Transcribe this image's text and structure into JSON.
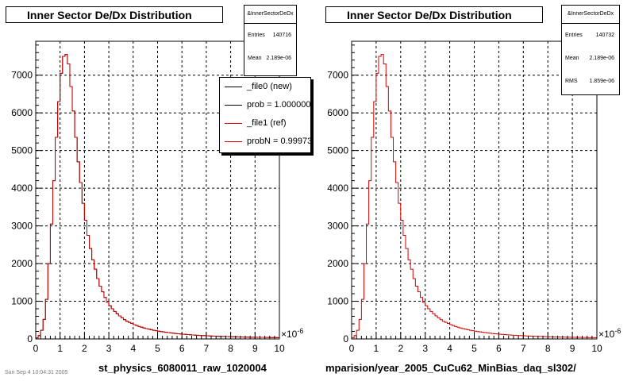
{
  "colors": {
    "series0": "#000000",
    "series1": "#d40000",
    "grid": "#000000"
  },
  "left": {
    "title": "Inner Sector De/Dx Distribution",
    "stats": {
      "header": "&InnerSectorDeDx",
      "rows": [
        {
          "label": "Entries",
          "value": "140716"
        },
        {
          "label": "Mean",
          "value": "2.189e-06"
        }
      ]
    },
    "legend": [
      {
        "label": "_file0 (new)",
        "color": "#000000"
      },
      {
        "label": "prob = 1.000000",
        "color": "#000000"
      },
      {
        "label": "_file1 (ref)",
        "color": "#d40000"
      },
      {
        "label": "probN = 0.99973",
        "color": "#d40000"
      }
    ],
    "xlabel": "st_physics_6080011_raw_1020004"
  },
  "right": {
    "title": "Inner Sector De/Dx Distribution",
    "stats": {
      "header": "&InnerSectorDeDx",
      "rows": [
        {
          "label": "Entries",
          "value": "140732"
        },
        {
          "label": "Mean",
          "value": "2.189e-06"
        },
        {
          "label": "RMS",
          "value": "1.859e-06"
        }
      ]
    },
    "xlabel": "mparision/year_2005_CuCu62_MinBias_daq_sl302/"
  },
  "footer": "Sun Sep  4 10:04:31 2005",
  "chart_data": [
    {
      "type": "bar",
      "title": "Inner Sector De/Dx Distribution",
      "xlabel": "st_physics_6080011_raw_1020004",
      "xlim": [
        0,
        10
      ],
      "x_multiplier": "×10^-6",
      "ylim": [
        0,
        7900
      ],
      "xticks": [
        "0",
        "1",
        "2",
        "3",
        "4",
        "5",
        "6",
        "7",
        "8",
        "9",
        "10"
      ],
      "yticks": [
        "0",
        "1000",
        "2000",
        "3000",
        "4000",
        "5000",
        "6000",
        "7000"
      ],
      "grid": true,
      "legend_position": "top-right",
      "bin_width": 0.1,
      "series": [
        {
          "name": "_file0 (new)",
          "values": [
            30,
            90,
            230,
            520,
            1050,
            2000,
            3050,
            4200,
            5350,
            6300,
            7050,
            7500,
            7550,
            7300,
            6700,
            6050,
            5350,
            4700,
            4150,
            3600,
            3150,
            2750,
            2400,
            2100,
            1850,
            1600,
            1400,
            1250,
            1100,
            970,
            880,
            800,
            730,
            670,
            610,
            560,
            510,
            470,
            440,
            410,
            380,
            355,
            330,
            310,
            290,
            275,
            260,
            245,
            230,
            218,
            206,
            196,
            186,
            177,
            168,
            160,
            152,
            145,
            138,
            132,
            126,
            120,
            115,
            110,
            105,
            101,
            97,
            93,
            89,
            86,
            83,
            80,
            77,
            74,
            71,
            69,
            67,
            65,
            63,
            61,
            59,
            57,
            55,
            53,
            52,
            50,
            49,
            47,
            46,
            45,
            44,
            43,
            42,
            41,
            40,
            39,
            38,
            37,
            36,
            35
          ]
        },
        {
          "name": "_file1 (ref)",
          "values": [
            30,
            90,
            230,
            520,
            1050,
            2000,
            3050,
            4200,
            5350,
            6300,
            7050,
            7500,
            7550,
            7300,
            6700,
            6050,
            5350,
            4700,
            4150,
            3600,
            3150,
            2750,
            2400,
            2100,
            1850,
            1600,
            1400,
            1250,
            1100,
            970,
            880,
            800,
            730,
            670,
            610,
            560,
            510,
            470,
            440,
            410,
            380,
            355,
            330,
            310,
            290,
            275,
            260,
            245,
            230,
            218,
            206,
            196,
            186,
            177,
            168,
            160,
            152,
            145,
            138,
            132,
            126,
            120,
            115,
            110,
            105,
            101,
            97,
            93,
            89,
            86,
            83,
            80,
            77,
            74,
            71,
            69,
            67,
            65,
            63,
            61,
            59,
            57,
            55,
            53,
            52,
            50,
            49,
            47,
            46,
            45,
            44,
            43,
            42,
            41,
            40,
            39,
            38,
            37,
            36,
            35
          ]
        }
      ]
    },
    {
      "type": "bar",
      "title": "Inner Sector De/Dx Distribution",
      "xlabel": "mparision/year_2005_CuCu62_MinBias_daq_sl302/",
      "xlim": [
        0,
        10
      ],
      "x_multiplier": "×10^-6",
      "ylim": [
        0,
        7900
      ],
      "xticks": [
        "0",
        "1",
        "2",
        "3",
        "4",
        "5",
        "6",
        "7",
        "8",
        "9",
        "10"
      ],
      "yticks": [
        "0",
        "1000",
        "2000",
        "3000",
        "4000",
        "5000",
        "6000",
        "7000"
      ],
      "grid": true,
      "bin_width": 0.1,
      "series": [
        {
          "values": [
            30,
            90,
            230,
            520,
            1050,
            2000,
            3050,
            4200,
            5350,
            6300,
            7050,
            7500,
            7550,
            7300,
            6700,
            6050,
            5350,
            4700,
            4150,
            3600,
            3150,
            2750,
            2400,
            2100,
            1850,
            1600,
            1400,
            1250,
            1100,
            970,
            880,
            800,
            730,
            670,
            610,
            560,
            510,
            470,
            440,
            410,
            380,
            355,
            330,
            310,
            290,
            275,
            260,
            245,
            230,
            218,
            206,
            196,
            186,
            177,
            168,
            160,
            152,
            145,
            138,
            132,
            126,
            120,
            115,
            110,
            105,
            101,
            97,
            93,
            89,
            86,
            83,
            80,
            77,
            74,
            71,
            69,
            67,
            65,
            63,
            61,
            59,
            57,
            55,
            53,
            52,
            50,
            49,
            47,
            46,
            45,
            44,
            43,
            42,
            41,
            40,
            39,
            38,
            37,
            36,
            35
          ]
        }
      ]
    }
  ]
}
